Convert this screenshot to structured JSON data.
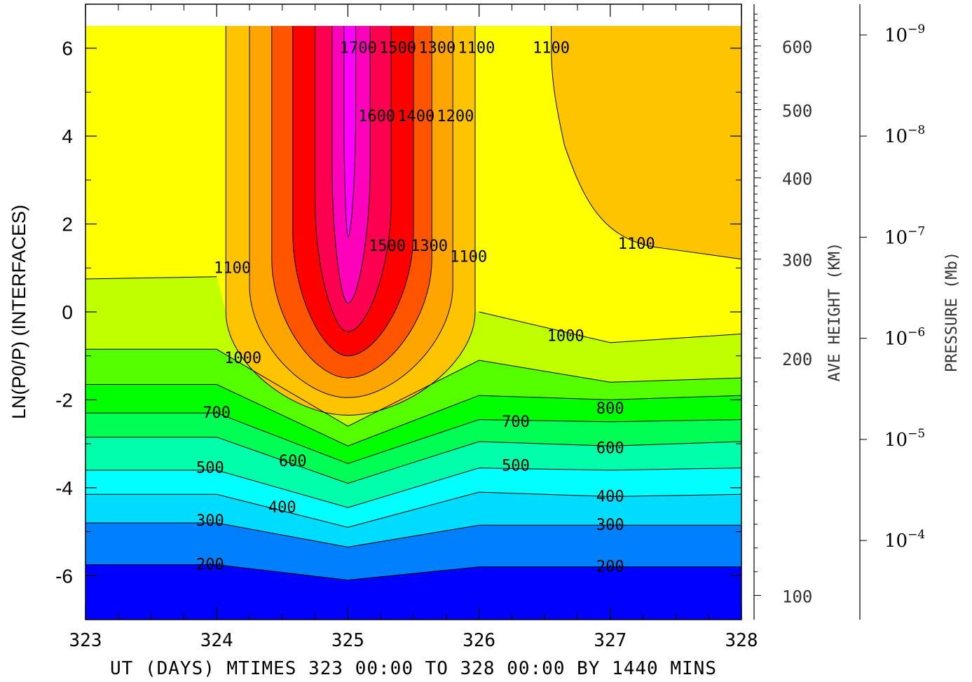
{
  "chart_data": {
    "type": "contour",
    "x_values": [
      323,
      324,
      325,
      326,
      327,
      328
    ],
    "x_ticks": [
      "323",
      "324",
      "325",
      "326",
      "327",
      "328"
    ],
    "x_range": [
      323,
      328
    ],
    "xlabel": "UT (DAYS) MTIMES 323 00:00 TO 328 00:00 BY 1440 MINS",
    "y_range": [
      -7,
      7
    ],
    "y_ticks": [
      "6",
      "4",
      "2",
      "0",
      "-2",
      "-4",
      "-6"
    ],
    "ylabel": "LN(P0/P) (INTERFACES)",
    "right_axis_1": {
      "label": "AVE HEIGHT (KM)",
      "ticks": [
        {
          "text": "600",
          "y": 6.05
        },
        {
          "text": "500",
          "y": 4.6
        },
        {
          "text": "400",
          "y": 3.05
        },
        {
          "text": "300",
          "y": 1.2
        },
        {
          "text": "200",
          "y": -1.05
        },
        {
          "text": "100",
          "y": -6.45
        }
      ]
    },
    "right_axis_2": {
      "label": "PRESSURE (Mb)",
      "ticks": [
        {
          "base": "10",
          "exp": "−9",
          "y": 6.3
        },
        {
          "base": "10",
          "exp": "−8",
          "y": 4.0
        },
        {
          "base": "10",
          "exp": "−7",
          "y": 1.7
        },
        {
          "base": "10",
          "exp": "−6",
          "y": -0.6
        },
        {
          "base": "10",
          "exp": "−5",
          "y": -2.9
        },
        {
          "base": "10",
          "exp": "−4",
          "y": -5.2
        }
      ]
    },
    "contour_levels": [
      200,
      300,
      400,
      500,
      600,
      700,
      800,
      1000,
      1100,
      1200,
      1300,
      1400,
      1500,
      1600,
      1700
    ],
    "contour_labels": [
      {
        "text": "200",
        "x": 323.95,
        "y": -5.75
      },
      {
        "text": "300",
        "x": 323.95,
        "y": -4.75
      },
      {
        "text": "500",
        "x": 323.95,
        "y": -3.55
      },
      {
        "text": "700",
        "x": 324.0,
        "y": -2.3
      },
      {
        "text": "1000",
        "x": 324.2,
        "y": -1.05
      },
      {
        "text": "1100",
        "x": 324.12,
        "y": 1.0
      },
      {
        "text": "600",
        "x": 324.58,
        "y": -3.4
      },
      {
        "text": "400",
        "x": 324.5,
        "y": -4.45
      },
      {
        "text": "1500",
        "x": 325.3,
        "y": 1.5
      },
      {
        "text": "1300",
        "x": 325.62,
        "y": 1.5
      },
      {
        "text": "1100",
        "x": 325.92,
        "y": 1.25
      },
      {
        "text": "1700",
        "x": 325.08,
        "y": 6.0
      },
      {
        "text": "1500",
        "x": 325.38,
        "y": 6.0
      },
      {
        "text": "1300",
        "x": 325.68,
        "y": 6.0
      },
      {
        "text": "1100",
        "x": 325.98,
        "y": 6.0
      },
      {
        "text": "1600",
        "x": 325.22,
        "y": 4.45
      },
      {
        "text": "1400",
        "x": 325.52,
        "y": 4.45
      },
      {
        "text": "1200",
        "x": 325.82,
        "y": 4.45
      },
      {
        "text": "1100",
        "x": 326.55,
        "y": 6.0
      },
      {
        "text": "1100",
        "x": 327.2,
        "y": 1.55
      },
      {
        "text": "1000",
        "x": 326.66,
        "y": -0.55
      },
      {
        "text": "700",
        "x": 326.28,
        "y": -2.5
      },
      {
        "text": "500",
        "x": 326.28,
        "y": -3.5
      },
      {
        "text": "800",
        "x": 327.0,
        "y": -2.2
      },
      {
        "text": "600",
        "x": 327.0,
        "y": -3.1
      },
      {
        "text": "400",
        "x": 327.0,
        "y": -4.2
      },
      {
        "text": "300",
        "x": 327.0,
        "y": -4.85
      },
      {
        "text": "200",
        "x": 327.0,
        "y": -5.8
      }
    ],
    "colors": {
      "c_lt200": "#0000ff",
      "c_200": "#0080ff",
      "c_300": "#00dcff",
      "c_400": "#00ffff",
      "c_500": "#00ffaa",
      "c_600": "#00ff55",
      "c_700": "#00ff00",
      "c_800": "#55ff00",
      "c_1000": "#bfff00",
      "c_1100": "#ffff00",
      "c_1100b": "#ffc400",
      "c_1200": "#ffa500",
      "c_1300": "#ff5500",
      "c_1400": "#ff0000",
      "c_1500": "#ff0050",
      "c_1600": "#ff00bb",
      "c_1700": "#ff00ff"
    }
  }
}
